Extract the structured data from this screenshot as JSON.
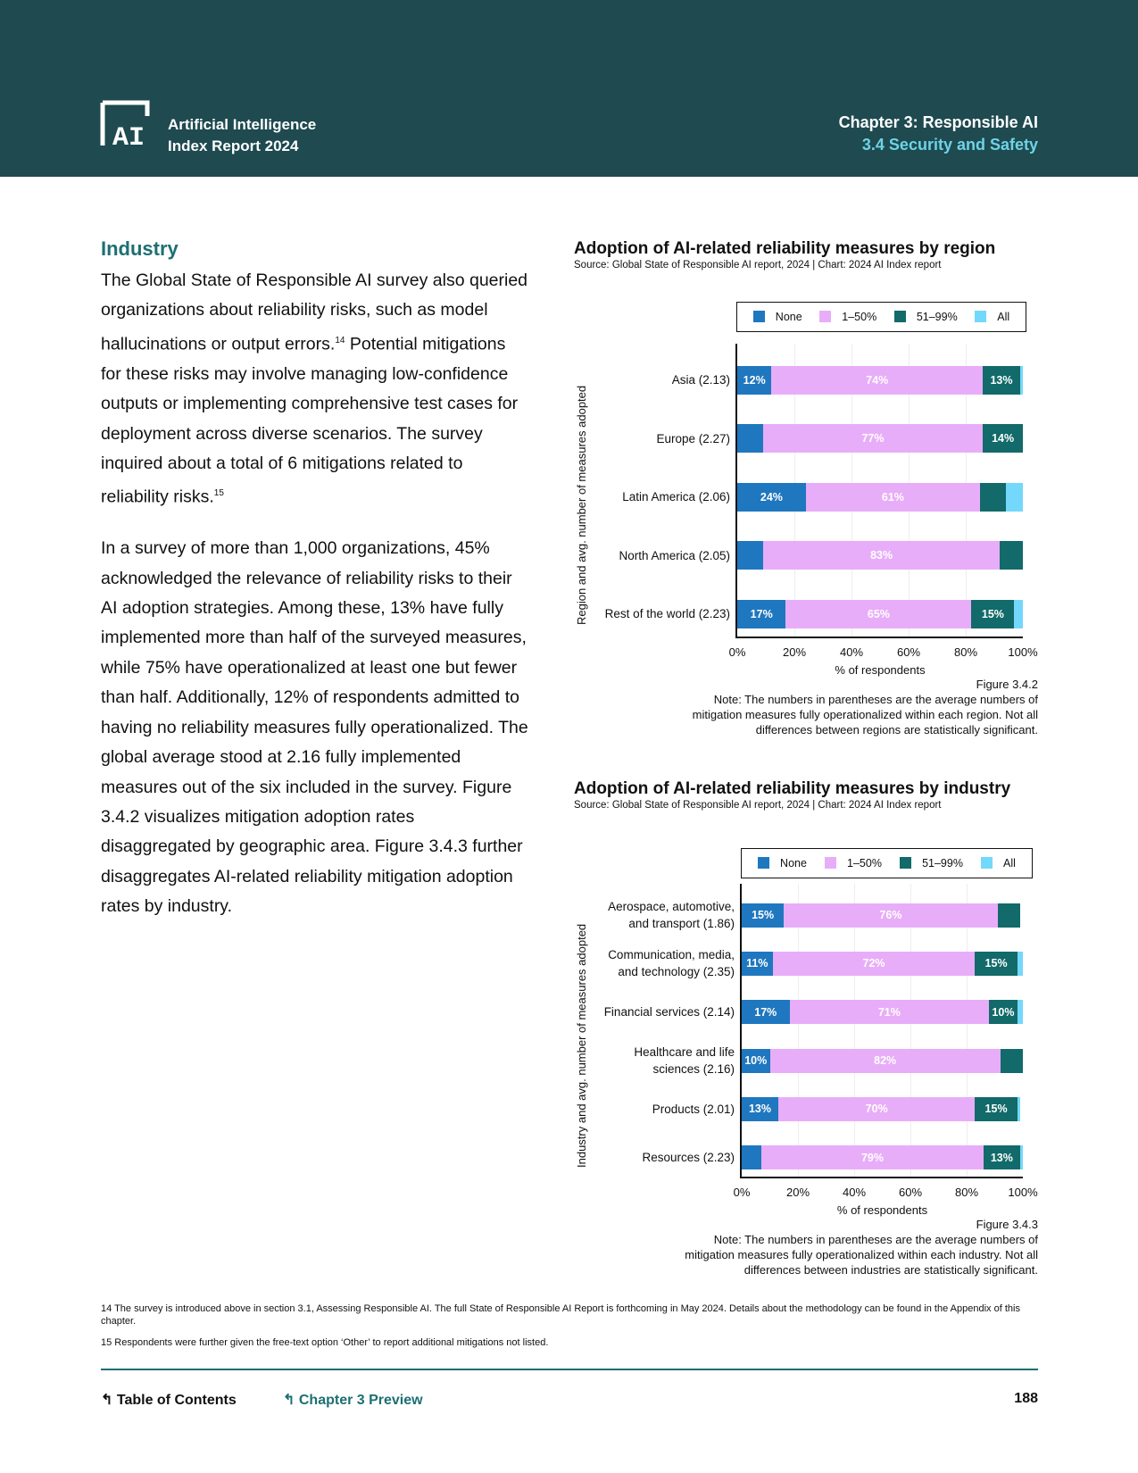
{
  "header": {
    "logo_text": "AI",
    "report_title_line1": "Artificial Intelligence",
    "report_title_line2": "Index Report 2024",
    "chapter": "Chapter 3: Responsible AI",
    "section": "3.4 Security and Safety"
  },
  "body": {
    "heading": "Industry",
    "p1": "The Global State of Responsible AI survey also queried organizations about reliability risks, such as model hallucinations or output errors.",
    "p1_sup": "14",
    "p1b": " Potential mitigations for these risks may involve managing low-confidence outputs or implementing comprehensive test cases for deployment across diverse scenarios. The survey inquired about a total of 6 mitigations related to reliability risks.",
    "p1b_sup": "15",
    "p2": "In a survey of more than 1,000 organizations, 45% acknowledged the relevance of reliability risks to their AI adoption strategies. Among these, 13% have fully implemented more than half of the surveyed measures, while 75% have operationalized at least one but fewer than half. Additionally, 12% of respondents admitted to having no reliability measures fully operationalized. The global average stood at 2.16 fully implemented measures out of the six included in the survey. Figure 3.4.2 visualizes mitigation adoption rates disaggregated by geographic area. Figure 3.4.3 further disaggregates AI-related reliability mitigation adoption rates by industry."
  },
  "chart_data": [
    {
      "type": "bar",
      "orientation": "horizontal",
      "stacked": true,
      "title": "Adoption of AI-related reliability measures by region",
      "source": "Source: Global State of Responsible AI report, 2024 | Chart: 2024 AI Index report",
      "xlabel": "% of respondents",
      "ylabel": "Region and avg. number of measures adopted",
      "xlim": [
        0,
        100
      ],
      "xticks": [
        "0%",
        "20%",
        "40%",
        "60%",
        "80%",
        "100%"
      ],
      "legend_position": "top",
      "categories": [
        "Asia (2.13)",
        "Europe (2.27)",
        "Latin America (2.06)",
        "North America (2.05)",
        "Rest of the world (2.23)"
      ],
      "series": [
        {
          "name": "None",
          "color": "#1f77bf",
          "values": [
            12,
            9,
            24,
            9,
            17
          ],
          "labels": [
            "12%",
            null,
            "24%",
            null,
            "17%"
          ]
        },
        {
          "name": "1–50%",
          "color": "#e8adf8",
          "values": [
            74,
            77,
            61,
            83,
            65
          ],
          "labels": [
            "74%",
            "77%",
            "61%",
            "83%",
            "65%"
          ]
        },
        {
          "name": "51–99%",
          "color": "#126a6a",
          "values": [
            13,
            14,
            9,
            8,
            15
          ],
          "labels": [
            "13%",
            "14%",
            null,
            null,
            "15%"
          ]
        },
        {
          "name": "All",
          "color": "#73d8fb",
          "values": [
            1,
            0,
            6,
            0,
            3
          ],
          "labels": [
            null,
            null,
            null,
            null,
            null
          ]
        }
      ],
      "figure": "Figure 3.4.2",
      "note": "Note: The numbers in parentheses are the average numbers of mitigation measures fully operationalized within each region. Not all differences between regions are statistically significant."
    },
    {
      "type": "bar",
      "orientation": "horizontal",
      "stacked": true,
      "title": "Adoption of AI-related reliability measures by industry",
      "source": "Source: Global State of Responsible AI report, 2024 | Chart: 2024 AI Index report",
      "xlabel": "% of respondents",
      "ylabel": "Industry and avg. number of measures adopted",
      "xlim": [
        0,
        100
      ],
      "xticks": [
        "0%",
        "20%",
        "40%",
        "60%",
        "80%",
        "100%"
      ],
      "legend_position": "top",
      "categories": [
        "Aerospace, automotive, and transport (1.86)",
        "Communication, media, and technology (2.35)",
        "Financial services (2.14)",
        "Healthcare and life sciences (2.16)",
        "Products (2.01)",
        "Resources (2.23)"
      ],
      "series": [
        {
          "name": "None",
          "color": "#1f77bf",
          "values": [
            15,
            11,
            17,
            10,
            13,
            7
          ],
          "labels": [
            "15%",
            "11%",
            "17%",
            "10%",
            "13%",
            null
          ]
        },
        {
          "name": "1–50%",
          "color": "#e8adf8",
          "values": [
            76,
            72,
            71,
            82,
            70,
            79
          ],
          "labels": [
            "76%",
            "72%",
            "71%",
            "82%",
            "70%",
            "79%"
          ]
        },
        {
          "name": "51–99%",
          "color": "#126a6a",
          "values": [
            8,
            15,
            10,
            8,
            15,
            13
          ],
          "labels": [
            null,
            "15%",
            "10%",
            null,
            "15%",
            "13%"
          ]
        },
        {
          "name": "All",
          "color": "#73d8fb",
          "values": [
            0,
            2,
            2,
            0,
            1,
            1
          ],
          "labels": [
            null,
            null,
            null,
            null,
            null,
            null
          ]
        }
      ],
      "figure": "Figure 3.4.3",
      "note": "Note: The numbers in parentheses are the average numbers of mitigation measures fully operationalized within each industry. Not all differences between industries are statistically significant."
    }
  ],
  "footnotes": [
    "14 The survey is introduced above in section 3.1, Assessing Responsible AI. The full State of Responsible AI Report is forthcoming in May 2024. Details about the methodology can be found in the Appendix of this chapter.",
    "15 Respondents were further given the free-text option ‘Other’ to report additional mitigations not listed."
  ],
  "footer": {
    "toc": "Table of Contents",
    "chapter_preview": "Chapter 3 Preview",
    "page": "188",
    "accent": "#1d6f72"
  }
}
